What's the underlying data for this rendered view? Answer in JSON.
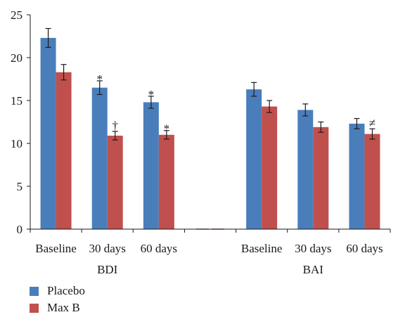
{
  "chart_data": {
    "type": "bar",
    "ylim": [
      0,
      25
    ],
    "yticks": [
      0,
      5,
      10,
      15,
      20,
      25
    ],
    "grid": false,
    "legend_position": "bottom-left",
    "groups": [
      {
        "label": "BDI",
        "categories": [
          "Baseline",
          "30 days",
          "60 days"
        ]
      },
      {
        "label": "",
        "categories": [
          ""
        ]
      },
      {
        "label": "BAI",
        "categories": [
          "Baseline",
          "30 days",
          "60 days"
        ]
      }
    ],
    "series": [
      {
        "name": "Placebo",
        "color": "#4a7ebb",
        "values": [
          22.3,
          16.5,
          14.8,
          0,
          16.3,
          13.9,
          12.3
        ],
        "errors": [
          1.1,
          0.8,
          0.7,
          0,
          0.8,
          0.7,
          0.6
        ],
        "annotations": [
          "",
          "*",
          "*",
          "",
          "",
          "",
          ""
        ]
      },
      {
        "name": "Max B",
        "color": "#c0504d",
        "values": [
          18.3,
          10.9,
          11.0,
          0,
          14.3,
          11.9,
          11.1
        ],
        "errors": [
          0.9,
          0.5,
          0.5,
          0,
          0.7,
          0.6,
          0.6
        ],
        "annotations": [
          "",
          "†",
          "*",
          "",
          "",
          "",
          "≠"
        ]
      }
    ]
  }
}
